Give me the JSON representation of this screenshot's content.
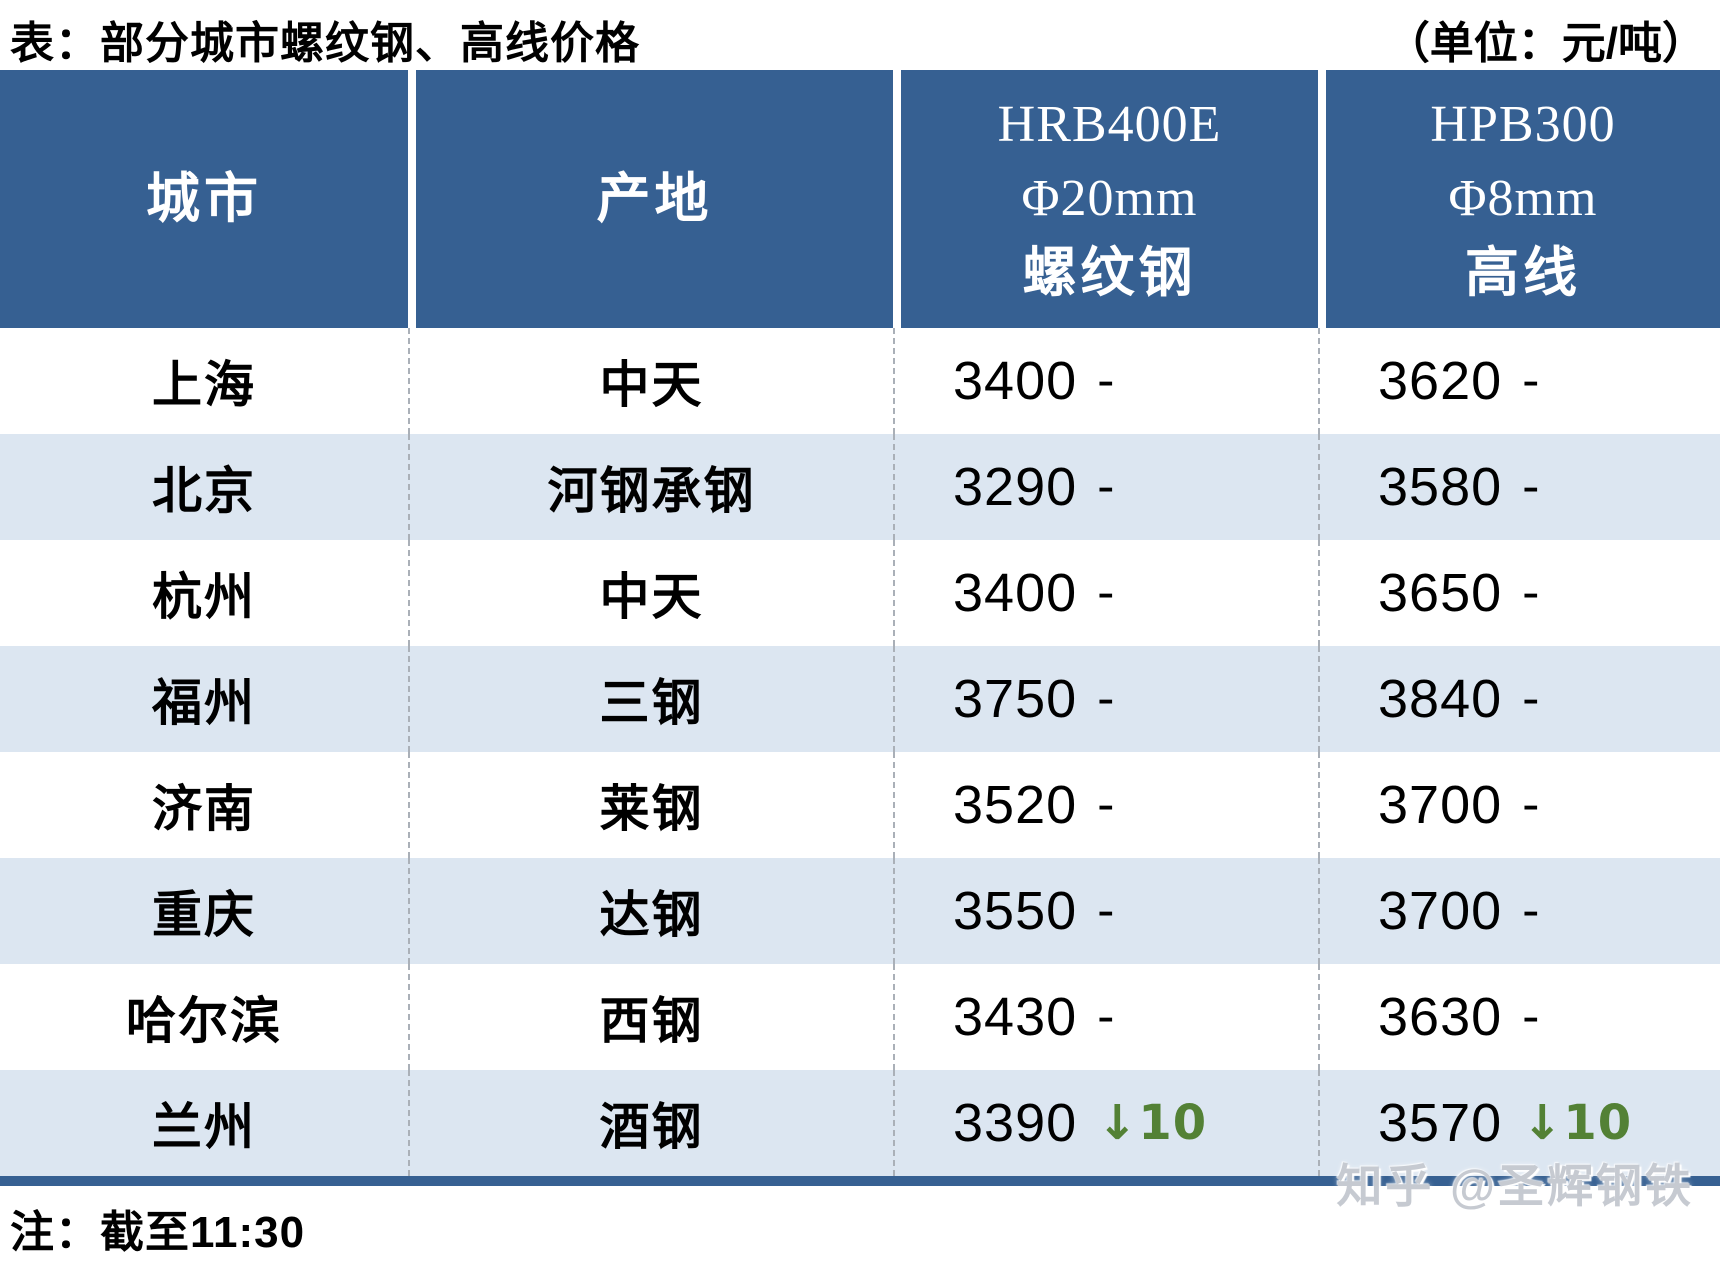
{
  "page": {
    "title": "表：部分城市螺纹钢、高线价格",
    "unit": "（单位：元/吨）",
    "note": "注：截至11:30",
    "watermark": "知乎 @圣辉钢铁"
  },
  "table": {
    "columns": {
      "city": "城市",
      "origin": "产地",
      "rebar_lines": [
        "HRB400E",
        "Φ20mm",
        "螺纹钢"
      ],
      "wire_lines": [
        "HPB300",
        "Φ8mm",
        "高线"
      ]
    },
    "rows": [
      {
        "city": "上海",
        "mill": "中天",
        "rebar": {
          "price": "3400",
          "change": "-"
        },
        "wire": {
          "price": "3620",
          "change": "-"
        }
      },
      {
        "city": "北京",
        "mill": "河钢承钢",
        "rebar": {
          "price": "3290",
          "change": "-"
        },
        "wire": {
          "price": "3580",
          "change": "-"
        }
      },
      {
        "city": "杭州",
        "mill": "中天",
        "rebar": {
          "price": "3400",
          "change": "-"
        },
        "wire": {
          "price": "3650",
          "change": "-"
        }
      },
      {
        "city": "福州",
        "mill": "三钢",
        "rebar": {
          "price": "3750",
          "change": "-"
        },
        "wire": {
          "price": "3840",
          "change": "-"
        }
      },
      {
        "city": "济南",
        "mill": "莱钢",
        "rebar": {
          "price": "3520",
          "change": "-"
        },
        "wire": {
          "price": "3700",
          "change": "-"
        }
      },
      {
        "city": "重庆",
        "mill": "达钢",
        "rebar": {
          "price": "3550",
          "change": "-"
        },
        "wire": {
          "price": "3700",
          "change": "-"
        }
      },
      {
        "city": "哈尔滨",
        "mill": "西钢",
        "rebar": {
          "price": "3430",
          "change": "-"
        },
        "wire": {
          "price": "3630",
          "change": "-"
        }
      },
      {
        "city": "兰州",
        "mill": "酒钢",
        "rebar": {
          "price": "3390",
          "change": "↓10"
        },
        "wire": {
          "price": "3570",
          "change": "↓10"
        }
      }
    ]
  },
  "colors": {
    "header_bg": "#366092",
    "row_alt_bg": "#dce6f1",
    "bottom_rule": "#366092",
    "change_down_green": "#538135",
    "divider_gray": "#aab0b8"
  },
  "chart_data": {
    "type": "table",
    "title": "表：部分城市螺纹钢、高线价格",
    "unit": "元/吨",
    "columns": [
      "城市",
      "产地",
      "HRB400E Φ20mm 螺纹钢",
      "HPB300 Φ8mm 高线"
    ],
    "rows": [
      {
        "城市": "上海",
        "产地": "中天",
        "HRB400E_20mm": 3400,
        "HRB400E_变动": 0,
        "HPB300_8mm": 3620,
        "HPB300_变动": 0
      },
      {
        "城市": "北京",
        "产地": "河钢承钢",
        "HRB400E_20mm": 3290,
        "HRB400E_变动": 0,
        "HPB300_8mm": 3580,
        "HPB300_变动": 0
      },
      {
        "城市": "杭州",
        "产地": "中天",
        "HRB400E_20mm": 3400,
        "HRB400E_变动": 0,
        "HPB300_8mm": 3650,
        "HPB300_变动": 0
      },
      {
        "城市": "福州",
        "产地": "三钢",
        "HRB400E_20mm": 3750,
        "HRB400E_变动": 0,
        "HPB300_8mm": 3840,
        "HPB300_变动": 0
      },
      {
        "城市": "济南",
        "产地": "莱钢",
        "HRB400E_20mm": 3520,
        "HRB400E_变动": 0,
        "HPB300_8mm": 3700,
        "HPB300_变动": 0
      },
      {
        "城市": "重庆",
        "产地": "达钢",
        "HRB400E_20mm": 3550,
        "HRB400E_变动": 0,
        "HPB300_8mm": 3700,
        "HPB300_变动": 0
      },
      {
        "城市": "哈尔滨",
        "产地": "西钢",
        "HRB400E_20mm": 3430,
        "HRB400E_变动": 0,
        "HPB300_8mm": 3630,
        "HPB300_变动": 0
      },
      {
        "城市": "兰州",
        "产地": "酒钢",
        "HRB400E_20mm": 3390,
        "HRB400E_变动": -10,
        "HPB300_8mm": 3570,
        "HPB300_变动": -10
      }
    ],
    "note": "注：截至11:30",
    "legend_position": "none",
    "grid": "dashed-column-dividers"
  }
}
